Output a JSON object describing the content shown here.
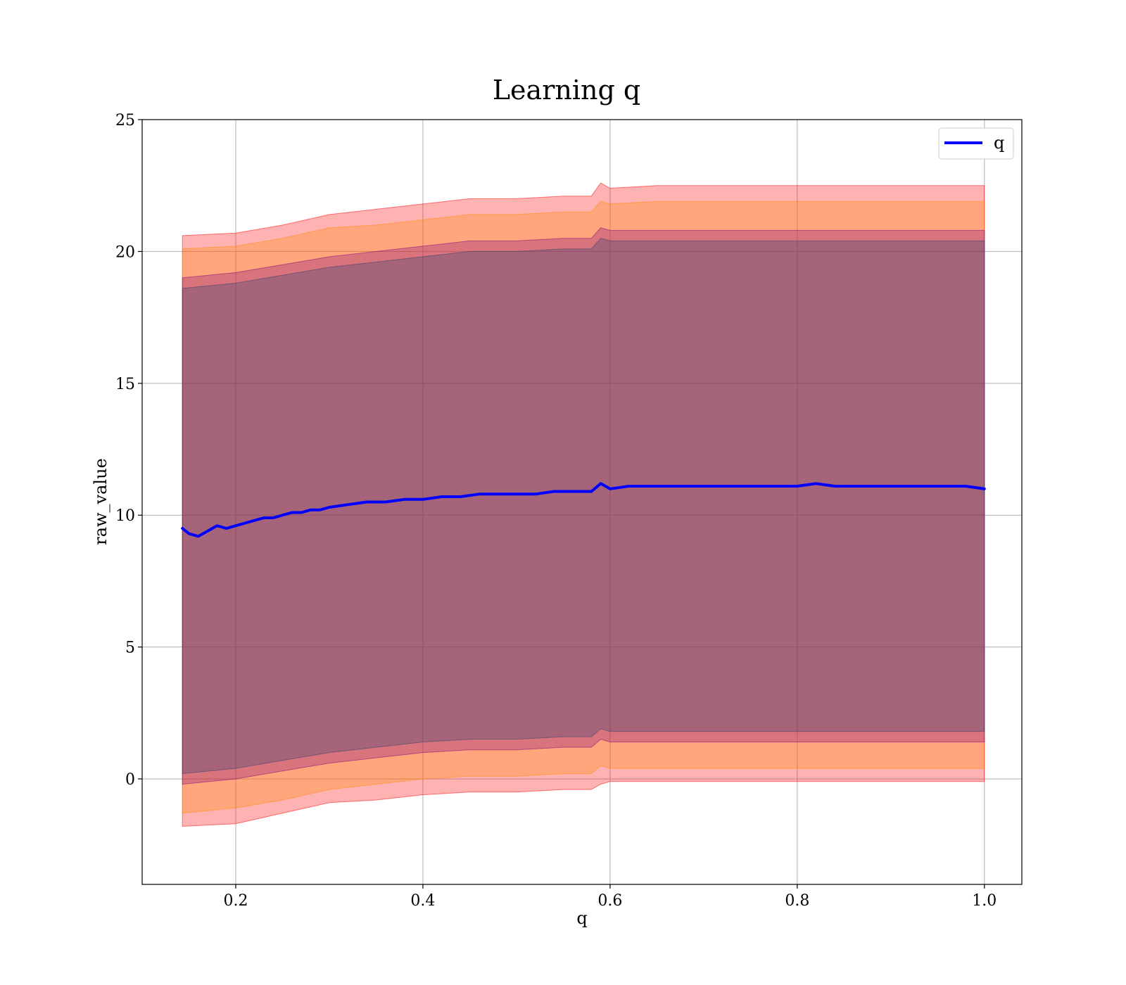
{
  "chart_data": {
    "type": "line",
    "title": "Learning q",
    "xlabel": "q",
    "ylabel": "raw_value",
    "xlim": [
      0.1,
      1.04
    ],
    "ylim": [
      -4,
      25
    ],
    "xticks": [
      0.2,
      0.4,
      0.6,
      0.8,
      1.0
    ],
    "xtick_labels": [
      "0.2",
      "0.4",
      "0.6",
      "0.8",
      "1.0"
    ],
    "yticks": [
      0,
      5,
      10,
      15,
      20,
      25
    ],
    "ytick_labels": [
      "0",
      "5",
      "10",
      "15",
      "20",
      "25"
    ],
    "grid": true,
    "legend_position": "top-right",
    "series": [
      {
        "name": "q",
        "color": "#0000ff",
        "x": [
          0.143,
          0.15,
          0.16,
          0.17,
          0.18,
          0.19,
          0.2,
          0.21,
          0.22,
          0.23,
          0.24,
          0.25,
          0.26,
          0.27,
          0.28,
          0.29,
          0.3,
          0.32,
          0.34,
          0.36,
          0.38,
          0.4,
          0.42,
          0.44,
          0.46,
          0.48,
          0.5,
          0.52,
          0.54,
          0.56,
          0.58,
          0.59,
          0.6,
          0.62,
          0.64,
          0.66,
          0.68,
          0.7,
          0.72,
          0.74,
          0.76,
          0.78,
          0.8,
          0.82,
          0.84,
          0.86,
          0.88,
          0.9,
          0.92,
          0.94,
          0.96,
          0.98,
          1.0
        ],
        "values": [
          9.5,
          9.3,
          9.2,
          9.4,
          9.6,
          9.5,
          9.6,
          9.7,
          9.8,
          9.9,
          9.9,
          10.0,
          10.1,
          10.1,
          10.2,
          10.2,
          10.3,
          10.4,
          10.5,
          10.5,
          10.6,
          10.6,
          10.7,
          10.7,
          10.8,
          10.8,
          10.8,
          10.8,
          10.9,
          10.9,
          10.9,
          11.2,
          11.0,
          11.1,
          11.1,
          11.1,
          11.1,
          11.1,
          11.1,
          11.1,
          11.1,
          11.1,
          11.1,
          11.2,
          11.1,
          11.1,
          11.1,
          11.1,
          11.1,
          11.1,
          11.1,
          11.1,
          11.0
        ]
      }
    ],
    "bands": [
      {
        "color": "#ff0000",
        "opacity": 0.3,
        "x": [
          0.143,
          0.2,
          0.25,
          0.3,
          0.35,
          0.4,
          0.45,
          0.5,
          0.55,
          0.58,
          0.59,
          0.6,
          0.65,
          0.7,
          0.75,
          0.8,
          0.85,
          0.9,
          0.95,
          1.0
        ],
        "upper": [
          20.6,
          20.7,
          21.0,
          21.4,
          21.6,
          21.8,
          22.0,
          22.0,
          22.1,
          22.1,
          22.6,
          22.4,
          22.5,
          22.5,
          22.5,
          22.5,
          22.5,
          22.5,
          22.5,
          22.5
        ],
        "lower": [
          -1.8,
          -1.7,
          -1.3,
          -0.9,
          -0.8,
          -0.6,
          -0.5,
          -0.5,
          -0.4,
          -0.4,
          -0.2,
          -0.1,
          -0.1,
          -0.1,
          -0.1,
          -0.1,
          -0.1,
          -0.1,
          -0.1,
          -0.1
        ]
      },
      {
        "color": "#ff8c00",
        "opacity": 0.3,
        "x": [
          0.143,
          0.2,
          0.25,
          0.3,
          0.35,
          0.4,
          0.45,
          0.5,
          0.55,
          0.58,
          0.59,
          0.6,
          0.65,
          0.7,
          0.75,
          0.8,
          0.85,
          0.9,
          0.95,
          1.0
        ],
        "upper": [
          20.1,
          20.2,
          20.5,
          20.9,
          21.0,
          21.2,
          21.4,
          21.4,
          21.5,
          21.5,
          21.9,
          21.8,
          21.9,
          21.9,
          21.9,
          21.9,
          21.9,
          21.9,
          21.9,
          21.9
        ],
        "lower": [
          -1.3,
          -1.1,
          -0.8,
          -0.4,
          -0.2,
          0.0,
          0.1,
          0.1,
          0.2,
          0.2,
          0.5,
          0.4,
          0.4,
          0.4,
          0.4,
          0.4,
          0.4,
          0.4,
          0.4,
          0.4
        ]
      },
      {
        "color": "#800080",
        "opacity": 0.3,
        "x": [
          0.143,
          0.2,
          0.25,
          0.3,
          0.35,
          0.4,
          0.45,
          0.5,
          0.55,
          0.58,
          0.59,
          0.6,
          0.65,
          0.7,
          0.75,
          0.8,
          0.85,
          0.9,
          0.95,
          1.0
        ],
        "upper": [
          19.0,
          19.2,
          19.5,
          19.8,
          20.0,
          20.2,
          20.4,
          20.4,
          20.5,
          20.5,
          20.9,
          20.8,
          20.8,
          20.8,
          20.8,
          20.8,
          20.8,
          20.8,
          20.8,
          20.8
        ],
        "lower": [
          -0.2,
          0.0,
          0.3,
          0.6,
          0.8,
          1.0,
          1.1,
          1.1,
          1.2,
          1.2,
          1.5,
          1.4,
          1.4,
          1.4,
          1.4,
          1.4,
          1.4,
          1.4,
          1.4,
          1.4
        ]
      },
      {
        "color": "#2f3f6f",
        "opacity": 0.3,
        "x": [
          0.143,
          0.2,
          0.25,
          0.3,
          0.35,
          0.4,
          0.45,
          0.5,
          0.55,
          0.58,
          0.59,
          0.6,
          0.65,
          0.7,
          0.75,
          0.8,
          0.85,
          0.9,
          0.95,
          1.0
        ],
        "upper": [
          18.6,
          18.8,
          19.1,
          19.4,
          19.6,
          19.8,
          20.0,
          20.0,
          20.1,
          20.1,
          20.5,
          20.4,
          20.4,
          20.4,
          20.4,
          20.4,
          20.4,
          20.4,
          20.4,
          20.4
        ],
        "lower": [
          0.2,
          0.4,
          0.7,
          1.0,
          1.2,
          1.4,
          1.5,
          1.5,
          1.6,
          1.6,
          1.9,
          1.8,
          1.8,
          1.8,
          1.8,
          1.8,
          1.8,
          1.8,
          1.8,
          1.8
        ]
      }
    ]
  }
}
